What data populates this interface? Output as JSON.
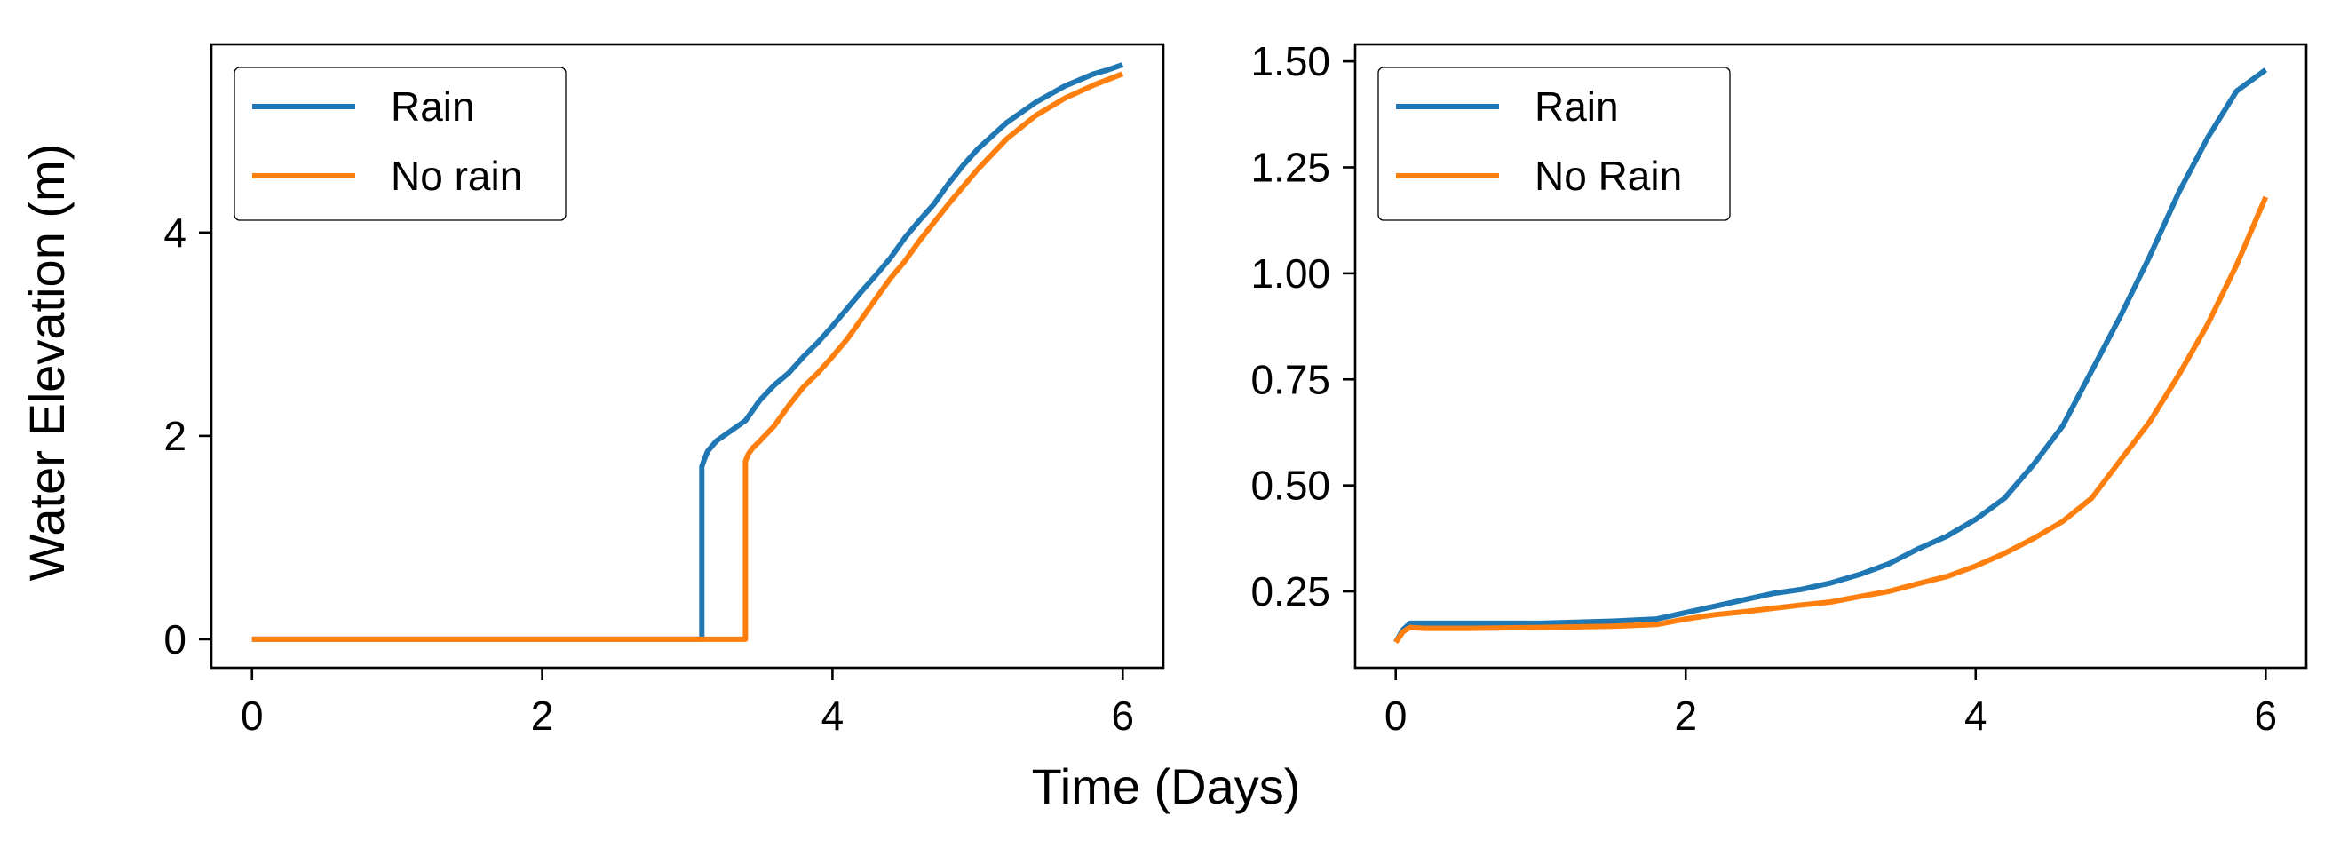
{
  "figure": {
    "xlabel": "Time (Days)",
    "ylabel": "Water Elevation (m)"
  },
  "chart_data": [
    {
      "type": "line",
      "panel": "left",
      "xlim": [
        -0.28,
        6.28
      ],
      "ylim": [
        -0.28,
        5.85
      ],
      "xticks": [
        0,
        2,
        4,
        6
      ],
      "yticks": [
        0,
        2,
        4
      ],
      "xlabel": "Time (Days)",
      "ylabel": "Water Elevation (m)",
      "grid": false,
      "legend": "top-left",
      "series": [
        {
          "name": "Rain",
          "color": "#1f77b4",
          "x": [
            0,
            1,
            2,
            3,
            3.1,
            3.1,
            3.12,
            3.14,
            3.2,
            3.3,
            3.4,
            3.45,
            3.5,
            3.6,
            3.7,
            3.8,
            3.9,
            4.0,
            4.1,
            4.2,
            4.3,
            4.4,
            4.5,
            4.6,
            4.7,
            4.8,
            4.9,
            5.0,
            5.2,
            5.4,
            5.6,
            5.8,
            5.9,
            6.0
          ],
          "y": [
            0,
            0,
            0,
            0,
            0,
            1.7,
            1.78,
            1.85,
            1.95,
            2.05,
            2.15,
            2.25,
            2.35,
            2.5,
            2.62,
            2.78,
            2.92,
            3.08,
            3.25,
            3.42,
            3.58,
            3.75,
            3.95,
            4.12,
            4.28,
            4.48,
            4.66,
            4.82,
            5.08,
            5.28,
            5.44,
            5.56,
            5.6,
            5.65
          ]
        },
        {
          "name": "No rain",
          "color": "#ff7f0e",
          "x": [
            0,
            1,
            2,
            3,
            3.4,
            3.4,
            3.42,
            3.45,
            3.5,
            3.6,
            3.7,
            3.8,
            3.9,
            4.0,
            4.1,
            4.2,
            4.3,
            4.4,
            4.5,
            4.6,
            4.7,
            4.8,
            4.9,
            5.0,
            5.2,
            5.4,
            5.6,
            5.8,
            6.0
          ],
          "y": [
            0,
            0,
            0,
            0,
            0,
            1.75,
            1.82,
            1.88,
            1.95,
            2.1,
            2.3,
            2.48,
            2.62,
            2.78,
            2.95,
            3.15,
            3.35,
            3.55,
            3.72,
            3.92,
            4.1,
            4.28,
            4.45,
            4.62,
            4.92,
            5.15,
            5.32,
            5.45,
            5.56
          ]
        }
      ]
    },
    {
      "type": "line",
      "panel": "right",
      "xlim": [
        -0.28,
        6.28
      ],
      "ylim": [
        0.07,
        1.54
      ],
      "xticks": [
        0,
        2,
        4,
        6
      ],
      "yticks": [
        0.25,
        0.5,
        0.75,
        1.0,
        1.25,
        1.5
      ],
      "ytick_labels": [
        "0.25",
        "0.50",
        "0.75",
        "1.00",
        "1.25",
        "1.50"
      ],
      "xlabel": "Time (Days)",
      "grid": false,
      "legend": "top-left",
      "series": [
        {
          "name": "Rain",
          "color": "#1f77b4",
          "x": [
            0,
            0.05,
            0.1,
            0.2,
            0.5,
            1.0,
            1.5,
            1.8,
            2.0,
            2.2,
            2.4,
            2.6,
            2.8,
            3.0,
            3.2,
            3.4,
            3.6,
            3.8,
            4.0,
            4.2,
            4.4,
            4.6,
            4.8,
            5.0,
            5.2,
            5.4,
            5.6,
            5.8,
            6.0
          ],
          "y": [
            0.13,
            0.16,
            0.175,
            0.175,
            0.175,
            0.175,
            0.18,
            0.185,
            0.2,
            0.215,
            0.23,
            0.245,
            0.255,
            0.27,
            0.29,
            0.315,
            0.35,
            0.38,
            0.42,
            0.47,
            0.55,
            0.64,
            0.77,
            0.9,
            1.04,
            1.19,
            1.32,
            1.43,
            1.48
          ]
        },
        {
          "name": "No Rain",
          "color": "#ff7f0e",
          "x": [
            0,
            0.05,
            0.1,
            0.2,
            0.5,
            1.0,
            1.5,
            1.8,
            2.0,
            2.2,
            2.4,
            2.6,
            2.8,
            3.0,
            3.2,
            3.4,
            3.6,
            3.8,
            4.0,
            4.2,
            4.4,
            4.6,
            4.8,
            5.0,
            5.2,
            5.4,
            5.6,
            5.8,
            6.0
          ],
          "y": [
            0.13,
            0.155,
            0.165,
            0.163,
            0.163,
            0.165,
            0.168,
            0.172,
            0.185,
            0.195,
            0.202,
            0.21,
            0.218,
            0.225,
            0.238,
            0.25,
            0.268,
            0.285,
            0.31,
            0.34,
            0.375,
            0.415,
            0.47,
            0.56,
            0.65,
            0.76,
            0.88,
            1.02,
            1.18
          ]
        }
      ]
    }
  ]
}
